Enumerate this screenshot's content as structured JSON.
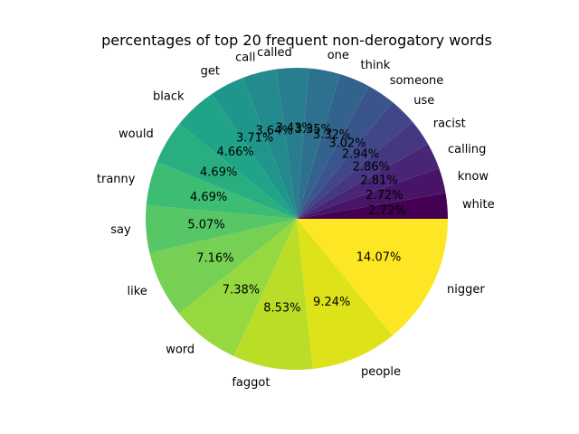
{
  "chart_data": {
    "type": "pie",
    "title": "percentages of top 20 frequent non-derogatory words",
    "categories": [
      "nigger",
      "people",
      "faggot",
      "word",
      "like",
      "say",
      "tranny",
      "would",
      "black",
      "get",
      "call",
      "called",
      "one",
      "think",
      "someone",
      "use",
      "racist",
      "calling",
      "know",
      "white"
    ],
    "values": [
      14.07,
      9.24,
      8.53,
      7.38,
      7.16,
      5.07,
      4.69,
      4.69,
      4.66,
      3.71,
      3.64,
      3.43,
      3.35,
      3.32,
      3.02,
      2.94,
      2.86,
      2.81,
      2.72,
      2.72
    ],
    "value_labels": [
      "14.07%",
      "9.24%",
      "8.53%",
      "7.38%",
      "7.16%",
      "5.07%",
      "4.69%",
      "4.69%",
      "4.66%",
      "3.71%",
      "3.64%",
      "3.43%",
      "3.35%",
      "3.32%",
      "3.02%",
      "2.94%",
      "2.86%",
      "2.81%",
      "2.72%",
      "2.72%"
    ],
    "colors": [
      "#fde725",
      "#dde318",
      "#bade28",
      "#95d840",
      "#75d054",
      "#56c667",
      "#3dbc74",
      "#29af7f",
      "#20a386",
      "#1f968b",
      "#238a8d",
      "#287d8e",
      "#2d718e",
      "#33638d",
      "#39558c",
      "#404688",
      "#453781",
      "#482576",
      "#481467",
      "#440154"
    ],
    "start_angle_deg": 0,
    "direction": "clockwise",
    "legend": "none"
  }
}
